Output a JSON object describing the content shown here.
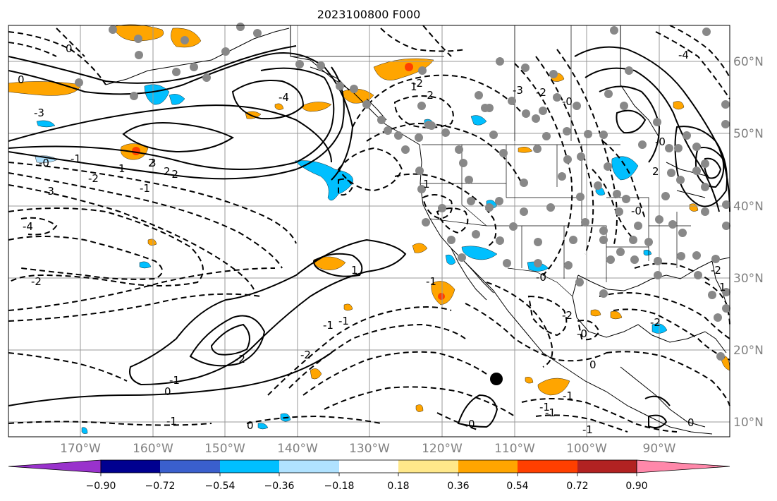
{
  "title": "2023100800 F000",
  "map": {
    "lon_labels": [
      "170°W",
      "160°W",
      "150°W",
      "140°W",
      "130°W",
      "120°W",
      "110°W",
      "100°W",
      "90°W"
    ],
    "lat_labels": [
      "60°N",
      "50°N",
      "40°N",
      "30°N",
      "20°N",
      "10°N"
    ]
  },
  "colorbar": {
    "labels": [
      "−0.90",
      "−0.72",
      "−0.54",
      "−0.36",
      "−0.18",
      "0.18",
      "0.36",
      "0.54",
      "0.72",
      "0.90"
    ],
    "colors": [
      "#9932cc",
      "#000090",
      "#3a5fcd",
      "#00bfff",
      "#b0e2ff",
      "#ffffff",
      "#ffe88a",
      "#ffa500",
      "#ff3f00",
      "#b22222",
      "#ff88aa"
    ]
  },
  "contour_labels": [
    "0",
    "-3",
    "-4",
    "3",
    "-2",
    "1",
    "2",
    "0",
    "-1",
    "-2",
    "2",
    "-0",
    "-1",
    "-1",
    "-1",
    "1",
    "-2",
    "-3",
    "-4",
    "-2",
    "0",
    "0",
    "-1",
    "-2",
    "-1",
    "-1",
    "1",
    "-2",
    "1",
    "-2",
    "0",
    "-1",
    "-1",
    "-2",
    "-0",
    "0",
    "-2",
    "-0",
    "-1",
    "1",
    "0",
    "-1",
    "-0",
    "-2",
    "-0",
    "-3",
    "-4",
    "-0",
    "-2",
    "2"
  ],
  "marker_color": "#888888"
}
